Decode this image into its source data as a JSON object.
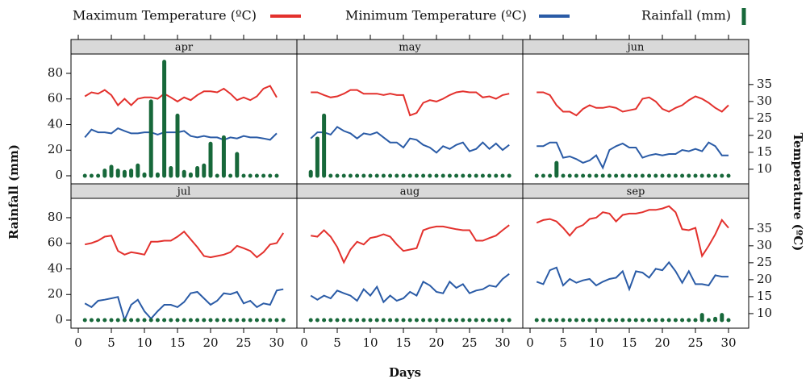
{
  "chart_data": {
    "type": "lattice",
    "xlabel": "Days",
    "ylabel": "Rainfall (mm)",
    "y2label": "Temperature (ºC)",
    "series": [
      {
        "name": "Maximum Temperature (ºC)",
        "color": "#e3312d",
        "axis": "y2",
        "style": "line"
      },
      {
        "name": "Minimum Temperature (ºC)",
        "color": "#2a5ba6",
        "axis": "y2",
        "style": "line"
      },
      {
        "name": "Rainfall (mm)",
        "color": "#17683a",
        "axis": "y",
        "style": "bar"
      }
    ],
    "xlim": [
      -1.1,
      33.05
    ],
    "xticks": [
      0,
      5,
      10,
      15,
      20,
      25,
      30
    ],
    "ylim": [
      -6.3,
      95.1
    ],
    "yticks": [
      0,
      20,
      40,
      60,
      80
    ],
    "y2lim": [
      5.7,
      44
    ],
    "y2ticks": [
      10,
      15,
      20,
      25,
      30,
      35
    ],
    "days": [
      1,
      2,
      3,
      4,
      5,
      6,
      7,
      8,
      9,
      10,
      11,
      12,
      13,
      14,
      15,
      16,
      17,
      18,
      19,
      20,
      21,
      22,
      23,
      24,
      25,
      26,
      27,
      28,
      29,
      30,
      31
    ],
    "panels": [
      {
        "title": "apr",
        "values": [
          [
            31.5,
            32.7,
            32.3,
            33.4,
            31.9,
            28.9,
            30.8,
            28.9,
            30.8,
            31.2,
            31.2,
            30.8,
            32.3,
            31.2,
            30.0,
            31.2,
            30.4,
            31.9,
            33.0,
            33.0,
            32.7,
            33.8,
            32.3,
            30.4,
            31.2,
            30.4,
            31.5,
            33.8,
            34.6,
            31.2
          ],
          [
            19.4,
            21.7,
            20.9,
            20.9,
            20.6,
            22.1,
            21.3,
            20.6,
            20.6,
            20.9,
            20.9,
            20.2,
            20.9,
            20.9,
            20.9,
            21.3,
            19.8,
            19.4,
            19.8,
            19.4,
            19.4,
            18.7,
            19.4,
            19.1,
            19.8,
            19.4,
            19.4,
            19.1,
            18.7,
            20.6
          ],
          [
            0,
            0,
            0,
            4,
            7,
            4,
            3,
            4,
            8,
            1,
            58,
            1,
            89,
            6,
            47,
            3,
            1,
            6,
            8,
            25,
            0,
            30,
            0,
            17,
            0,
            0,
            0,
            0,
            0,
            0
          ]
        ]
      },
      {
        "title": "may",
        "values": [
          [
            32.7,
            32.7,
            31.9,
            31.2,
            31.5,
            32.3,
            33.4,
            33.4,
            32.3,
            32.3,
            32.3,
            31.9,
            32.3,
            31.9,
            31.9,
            25.9,
            26.6,
            29.6,
            30.4,
            30.0,
            30.8,
            31.9,
            32.7,
            33.0,
            32.7,
            32.7,
            31.2,
            31.5,
            30.8,
            31.9,
            32.3
          ],
          [
            19.1,
            20.9,
            20.9,
            20.2,
            22.5,
            21.3,
            20.6,
            19.1,
            20.6,
            20.2,
            20.9,
            19.4,
            17.9,
            17.9,
            16.4,
            19.1,
            18.7,
            17.2,
            16.4,
            14.9,
            16.8,
            16.0,
            17.2,
            17.9,
            15.3,
            16.0,
            17.9,
            16.0,
            17.6,
            15.7,
            17.2
          ],
          [
            3,
            29,
            47,
            0,
            0,
            0,
            0,
            0,
            0,
            0,
            0,
            0,
            0,
            0,
            0,
            0,
            0,
            0,
            0,
            0,
            0,
            0,
            0,
            0,
            0,
            0,
            0,
            0,
            0,
            0,
            0
          ]
        ]
      },
      {
        "title": "jun",
        "values": [
          [
            32.7,
            32.7,
            31.9,
            28.9,
            27.0,
            27.0,
            25.9,
            27.8,
            28.9,
            28.1,
            28.1,
            28.5,
            28.1,
            27.0,
            27.4,
            27.8,
            30.8,
            31.2,
            30.0,
            27.8,
            27.0,
            28.1,
            28.9,
            30.4,
            31.5,
            30.8,
            29.6,
            28.1,
            27.0,
            28.9
          ],
          [
            16.8,
            16.8,
            17.9,
            17.9,
            13.4,
            13.8,
            13.0,
            11.9,
            12.6,
            14.1,
            10.4,
            15.7,
            16.8,
            17.6,
            16.4,
            16.4,
            13.4,
            14.1,
            14.5,
            14.1,
            14.5,
            14.5,
            15.7,
            15.3,
            16.0,
            15.3,
            17.9,
            16.8,
            14.1,
            14.1
          ],
          [
            0,
            0,
            0,
            10,
            0,
            0,
            0,
            0,
            0,
            0,
            0,
            0,
            0,
            0,
            0,
            0,
            0,
            0,
            0,
            0,
            0,
            0,
            0,
            0,
            0,
            0,
            0,
            0,
            0,
            0
          ]
        ]
      },
      {
        "title": "jul",
        "values": [
          [
            30.4,
            30.8,
            31.5,
            32.7,
            33.0,
            28.5,
            27.4,
            28.1,
            27.8,
            27.4,
            31.2,
            31.2,
            31.5,
            31.5,
            32.7,
            34.2,
            31.9,
            29.6,
            27.0,
            26.6,
            27.0,
            27.4,
            28.1,
            30.0,
            29.3,
            28.5,
            26.6,
            28.1,
            30.4,
            30.8,
            33.8
          ],
          [
            13.0,
            11.9,
            13.8,
            14.1,
            14.5,
            14.9,
            8.1,
            12.6,
            14.1,
            10.7,
            8.5,
            10.7,
            12.6,
            12.6,
            11.9,
            13.4,
            16.0,
            16.4,
            14.5,
            12.6,
            13.8,
            16.0,
            15.7,
            16.4,
            13.0,
            13.8,
            11.9,
            13.0,
            12.6,
            16.8,
            17.2
          ],
          [
            0,
            0,
            0,
            0,
            0,
            0,
            0,
            0,
            0,
            0,
            0,
            0,
            0,
            0,
            0,
            0,
            0,
            0,
            0,
            0,
            0,
            0,
            0,
            0,
            0,
            0,
            0,
            0,
            0,
            0,
            0
          ]
        ]
      },
      {
        "title": "aug",
        "values": [
          [
            33.0,
            32.7,
            34.6,
            32.7,
            29.6,
            25.1,
            28.9,
            31.2,
            30.4,
            32.3,
            32.7,
            33.4,
            32.7,
            30.4,
            28.5,
            28.9,
            29.3,
            34.6,
            35.3,
            35.7,
            35.7,
            35.3,
            34.9,
            34.6,
            34.6,
            31.5,
            31.5,
            32.3,
            33.0,
            34.6,
            36.1
          ],
          [
            15.3,
            14.1,
            15.3,
            14.5,
            16.8,
            16.0,
            15.3,
            13.8,
            17.2,
            15.3,
            17.9,
            13.4,
            15.3,
            13.8,
            14.5,
            16.4,
            15.3,
            19.4,
            18.3,
            16.4,
            16.0,
            19.4,
            17.6,
            18.7,
            16.0,
            16.8,
            17.2,
            18.3,
            17.9,
            20.2,
            21.7
          ],
          [
            0,
            0,
            0,
            0,
            0,
            0,
            0,
            0,
            0,
            0,
            0,
            0,
            0,
            0,
            0,
            0,
            0,
            0,
            0,
            0,
            0,
            0,
            0,
            0,
            0,
            0,
            0,
            0,
            0,
            0,
            0
          ]
        ]
      },
      {
        "title": "sep",
        "values": [
          [
            36.8,
            37.6,
            37.9,
            37.2,
            35.3,
            33.0,
            35.3,
            36.1,
            37.9,
            38.3,
            39.9,
            39.5,
            37.2,
            39.1,
            39.5,
            39.5,
            39.9,
            40.6,
            40.6,
            41.0,
            41.7,
            39.9,
            34.9,
            34.6,
            35.3,
            27.0,
            30.0,
            33.4,
            37.6,
            35.3
          ],
          [
            19.4,
            18.7,
            22.8,
            23.6,
            18.3,
            20.2,
            19.1,
            19.8,
            20.2,
            18.3,
            19.4,
            20.2,
            20.6,
            22.5,
            17.2,
            22.5,
            22.1,
            20.6,
            23.2,
            22.8,
            25.1,
            22.5,
            19.1,
            22.5,
            18.7,
            18.7,
            18.3,
            21.3,
            20.9,
            20.9
          ],
          [
            0,
            0,
            0,
            0,
            0,
            0,
            0,
            0,
            0,
            0,
            0,
            0,
            0,
            0,
            0,
            0,
            0,
            0,
            0,
            0,
            0,
            0,
            0,
            0,
            0,
            4,
            0,
            1,
            4,
            0
          ]
        ]
      }
    ]
  }
}
